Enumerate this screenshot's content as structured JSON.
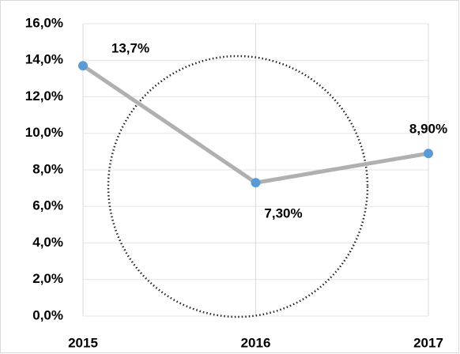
{
  "chart_data": {
    "type": "line",
    "categories": [
      "2015",
      "2016",
      "2017"
    ],
    "values": [
      13.7,
      7.3,
      8.9
    ],
    "value_labels": [
      "13,7%",
      "7,30%",
      "8,90%"
    ],
    "color": "#5b9bd5",
    "line_color": "#b0b0b0",
    "ylim": [
      0,
      16
    ],
    "yticks": [
      {
        "value": 0,
        "label": "0,0%"
      },
      {
        "value": 2,
        "label": "2,0%"
      },
      {
        "value": 4,
        "label": "4,0%"
      },
      {
        "value": 6,
        "label": "6,0%"
      },
      {
        "value": 8,
        "label": "8,0%"
      },
      {
        "value": 10,
        "label": "10,0%"
      },
      {
        "value": 12,
        "label": "12,0%"
      },
      {
        "value": 14,
        "label": "14,0%"
      },
      {
        "value": 16,
        "label": "16,0%"
      }
    ],
    "grid": true
  }
}
